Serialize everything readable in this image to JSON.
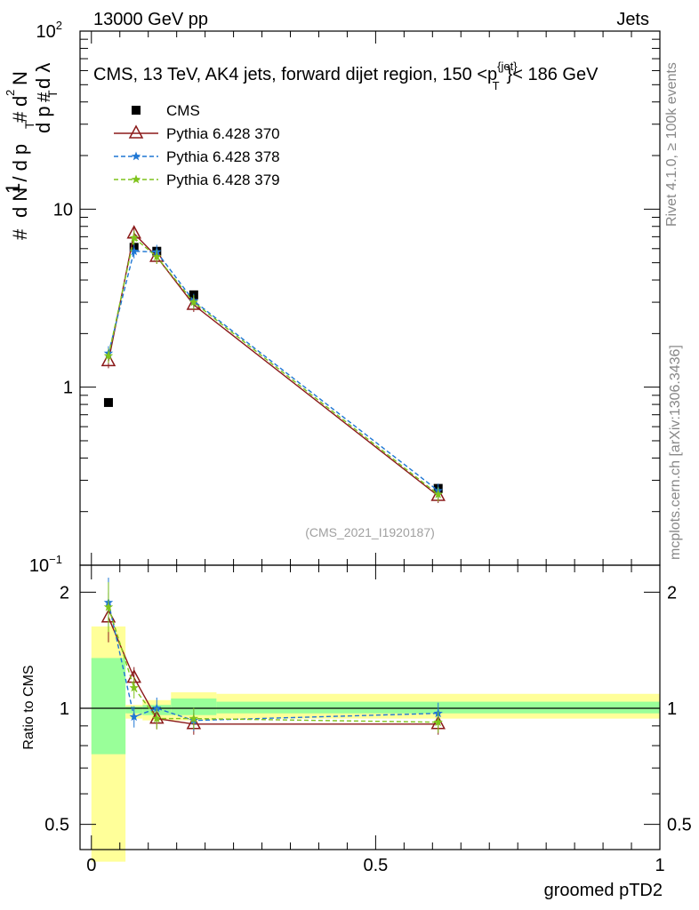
{
  "header": {
    "energy_label": "13000 GeV pp",
    "category_label": "Jets"
  },
  "side": {
    "rivet_label": "Rivet 4.1.0, ≥ 100k events",
    "url_label": "mcplots.cern.ch [arXiv:1306.3436]"
  },
  "colors": {
    "cms": "#000000",
    "p370": "#8b1a1a",
    "p378": "#1f77d4",
    "p379": "#7fc31c",
    "band_outer": "#ffff99",
    "band_inner": "#99ff99"
  },
  "chart_data": [
    {
      "type": "line",
      "panel": "main",
      "title": "CMS, 13 TeV, AK4 jets, forward dijet region, 150 <p",
      "title_sup": "{jet}",
      "title_sub": "T",
      "title_end": "}< 186 GeV",
      "ylabel": "1/N dN/dpT dλ",
      "yscale": "log",
      "ylim": [
        0.1,
        100
      ],
      "xlim": [
        -0.02,
        1.0
      ],
      "y_ticks": [
        {
          "value": 0.1,
          "base": "10",
          "exp": "−1"
        },
        {
          "value": 1,
          "base": "1",
          "exp": ""
        },
        {
          "value": 10,
          "base": "10",
          "exp": ""
        },
        {
          "value": 100,
          "base": "10",
          "exp": "2"
        }
      ],
      "watermark": "(CMS_2021_I1920187)",
      "x": [
        0.03,
        0.075,
        0.115,
        0.18,
        0.61
      ],
      "x_edges": [
        0,
        0.06,
        0.09,
        0.14,
        0.22,
        1.0
      ],
      "series": [
        {
          "name": "CMS",
          "key": "cms",
          "marker": "square",
          "values": [
            0.82,
            6.1,
            5.8,
            3.3,
            0.27
          ]
        },
        {
          "name": "Pythia 6.428 370",
          "key": "p370",
          "marker": "triangle",
          "dash": "solid",
          "values": [
            1.4,
            7.3,
            5.4,
            2.9,
            0.245
          ]
        },
        {
          "name": "Pythia 6.428 378",
          "key": "p378",
          "marker": "star",
          "dash": "dashed",
          "values": [
            1.55,
            5.8,
            5.75,
            3.05,
            0.262
          ]
        },
        {
          "name": "Pythia 6.428 379",
          "key": "p379",
          "marker": "star",
          "dash": "dashed",
          "values": [
            1.5,
            6.9,
            5.4,
            3.0,
            0.25
          ]
        }
      ]
    },
    {
      "type": "line",
      "panel": "ratio",
      "ylabel": "Ratio to CMS",
      "xlabel": "groomed pTD2",
      "yscale": "log",
      "ylim": [
        0.43,
        2.35
      ],
      "xlim": [
        -0.02,
        1.0
      ],
      "x_ticks": [
        {
          "value": 0,
          "label": "0"
        },
        {
          "value": 0.5,
          "label": "0.5"
        },
        {
          "value": 1,
          "label": "1"
        }
      ],
      "y_ticks": [
        {
          "value": 0.5,
          "label": "0.5"
        },
        {
          "value": 1,
          "label": "1"
        },
        {
          "value": 2,
          "label": "2"
        }
      ],
      "x": [
        0.03,
        0.075,
        0.115,
        0.18,
        0.61
      ],
      "bands": [
        {
          "x_from": 0.0,
          "x_to": 0.06,
          "outer": [
            0.4,
            1.63
          ],
          "inner": [
            0.76,
            1.35
          ]
        },
        {
          "x_from": 0.06,
          "x_to": 0.09,
          "outer": [
            0.94,
            1.02
          ],
          "inner": [
            0.97,
            1.01
          ]
        },
        {
          "x_from": 0.09,
          "x_to": 0.14,
          "outer": [
            0.93,
            1.05
          ],
          "inner": [
            0.96,
            1.02
          ]
        },
        {
          "x_from": 0.14,
          "x_to": 0.22,
          "outer": [
            0.93,
            1.1
          ],
          "inner": [
            0.96,
            1.06
          ]
        },
        {
          "x_from": 0.22,
          "x_to": 1.0,
          "outer": [
            0.94,
            1.09
          ],
          "inner": [
            0.97,
            1.04
          ]
        }
      ],
      "series": [
        {
          "name": "Pythia 6.428 370",
          "key": "p370",
          "marker": "triangle",
          "dash": "solid",
          "values": [
            1.72,
            1.2,
            0.94,
            0.91,
            0.91
          ]
        },
        {
          "name": "Pythia 6.428 378",
          "key": "p378",
          "marker": "star",
          "dash": "dashed",
          "values": [
            1.88,
            0.95,
            1.0,
            0.93,
            0.97
          ]
        },
        {
          "name": "Pythia 6.428 379",
          "key": "p379",
          "marker": "star",
          "dash": "dashed",
          "values": [
            1.83,
            1.13,
            0.94,
            0.94,
            0.92
          ]
        }
      ]
    }
  ]
}
